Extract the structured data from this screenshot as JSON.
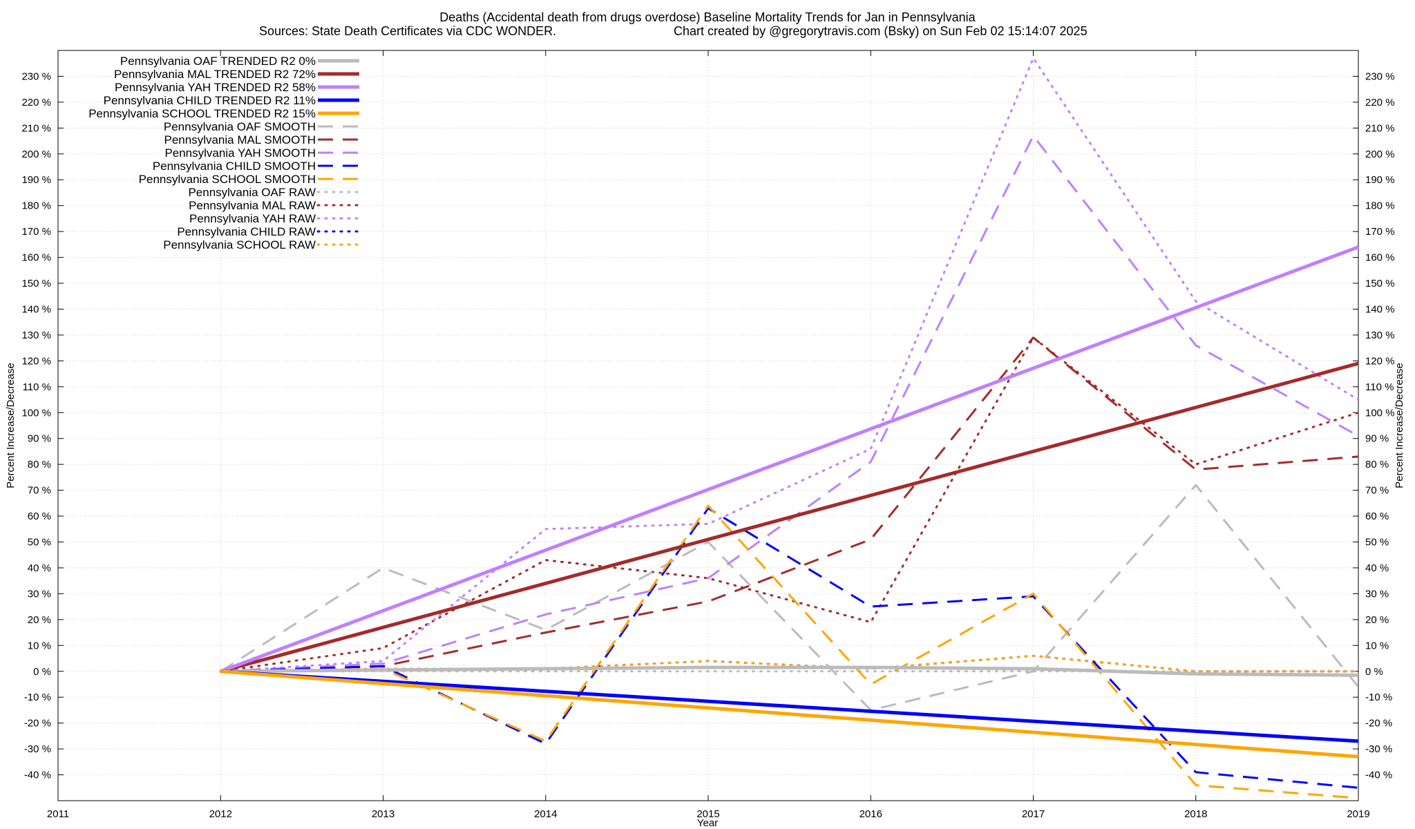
{
  "chart_data": {
    "type": "line",
    "title": "Deaths (Accidental death from drugs overdose)  Baseline Mortality Trends for Jan in Pennsylvania",
    "subtitle_left": "Sources: State Death Certificates via CDC WONDER.",
    "subtitle_right": "Chart created by @gregorytravis.com (Bsky) on Sun Feb 02 15:14:07 2025",
    "xlabel": "Year",
    "ylabel_left": "Percent Increase/Decrease",
    "ylabel_right": "Percent Increase/Decrease",
    "xlim": [
      2011,
      2019
    ],
    "ylim": [
      -50,
      240
    ],
    "x_ticks": [
      "2011",
      "2012",
      "2013",
      "2014",
      "2015",
      "2016",
      "2017",
      "2018",
      "2019"
    ],
    "y_ticks": [
      "230 %",
      "220 %",
      "210 %",
      "200 %",
      "190 %",
      "180 %",
      "170 %",
      "160 %",
      "150 %",
      "140 %",
      "130 %",
      "120 %",
      "110 %",
      "100 %",
      "90 %",
      "80 %",
      "70 %",
      "60 %",
      "50 %",
      "40 %",
      "30 %",
      "20 %",
      "10 %",
      "0 %",
      "-10 %",
      "-20 %",
      "-30 %",
      "-40 %"
    ],
    "grid": true,
    "legend_position": "top-left",
    "colors": {
      "oaf": "#bbbbbb",
      "mal": "#a52a2a",
      "yah": "#bf80ff",
      "child": "#0000ff",
      "school": "#ffa500"
    },
    "series": [
      {
        "name": "Pennsylvania OAF TRENDED R2   0%",
        "group": "oaf",
        "style": "solid",
        "x": [
          2012,
          2013,
          2014,
          2015,
          2016,
          2017,
          2018,
          2019
        ],
        "values": [
          0,
          0.5,
          1,
          1.5,
          1.5,
          1,
          -1,
          -1.5
        ]
      },
      {
        "name": "Pennsylvania MAL TRENDED R2  72%",
        "group": "mal",
        "style": "solid",
        "x": [
          2012,
          2019
        ],
        "values": [
          0,
          119
        ]
      },
      {
        "name": "Pennsylvania YAH TRENDED R2  58%",
        "group": "yah",
        "style": "solid",
        "x": [
          2012,
          2019
        ],
        "values": [
          0,
          164
        ]
      },
      {
        "name": "Pennsylvania CHILD TRENDED R2  11%",
        "group": "child",
        "style": "solid",
        "x": [
          2012,
          2019
        ],
        "values": [
          0,
          -27
        ]
      },
      {
        "name": "Pennsylvania SCHOOL TRENDED R2  15%",
        "group": "school",
        "style": "solid",
        "x": [
          2012,
          2019
        ],
        "values": [
          0,
          -33
        ]
      },
      {
        "name": "Pennsylvania OAF SMOOTH",
        "group": "oaf",
        "style": "dashed",
        "x": [
          2012,
          2013,
          2014,
          2015,
          2016,
          2017,
          2018,
          2019
        ],
        "values": [
          0,
          40,
          16,
          50,
          -15,
          0,
          72,
          -6
        ]
      },
      {
        "name": "Pennsylvania MAL SMOOTH",
        "group": "mal",
        "style": "dashed",
        "x": [
          2012,
          2013,
          2014,
          2015,
          2016,
          2017,
          2018,
          2019
        ],
        "values": [
          0,
          2,
          15,
          27,
          51,
          129,
          78,
          83
        ]
      },
      {
        "name": "Pennsylvania YAH SMOOTH",
        "group": "yah",
        "style": "dashed",
        "x": [
          2012,
          2013,
          2014,
          2015,
          2016,
          2017,
          2018,
          2019
        ],
        "values": [
          0,
          3,
          22,
          36,
          81,
          207,
          126,
          91
        ]
      },
      {
        "name": "Pennsylvania CHILD SMOOTH",
        "group": "child",
        "style": "dashed",
        "x": [
          2012,
          2013,
          2014,
          2015,
          2016,
          2017,
          2018,
          2019
        ],
        "values": [
          0,
          2,
          -28,
          63,
          25,
          29,
          -39,
          -45
        ]
      },
      {
        "name": "Pennsylvania SCHOOL SMOOTH",
        "group": "school",
        "style": "dashed",
        "x": [
          2012,
          2013,
          2014,
          2015,
          2016,
          2017,
          2018,
          2019
        ],
        "values": [
          0,
          1,
          -27,
          64,
          -5,
          30,
          -44,
          -49
        ]
      },
      {
        "name": "Pennsylvania OAF RAW",
        "group": "oaf",
        "style": "dotted",
        "x": [
          2012,
          2013,
          2014,
          2015,
          2016,
          2017,
          2018,
          2019
        ],
        "values": [
          0,
          0,
          0,
          0,
          0,
          0,
          0,
          0
        ]
      },
      {
        "name": "Pennsylvania MAL RAW",
        "group": "mal",
        "style": "dotted",
        "x": [
          2012,
          2013,
          2014,
          2015,
          2016,
          2017,
          2018,
          2019
        ],
        "values": [
          0,
          9,
          43,
          36,
          19,
          129,
          80,
          100
        ]
      },
      {
        "name": "Pennsylvania YAH RAW",
        "group": "yah",
        "style": "dotted",
        "x": [
          2012,
          2013,
          2014,
          2015,
          2016,
          2017,
          2018,
          2019
        ],
        "values": [
          0,
          4,
          55,
          57,
          86,
          237,
          143,
          105
        ]
      },
      {
        "name": "Pennsylvania CHILD RAW",
        "group": "child",
        "style": "dotted",
        "x": [
          2012,
          2013,
          2014,
          2015,
          2016,
          2017,
          2018,
          2019
        ],
        "values": [
          0,
          1,
          1,
          4,
          1,
          6,
          0,
          0
        ]
      },
      {
        "name": "Pennsylvania SCHOOL RAW",
        "group": "school",
        "style": "dotted",
        "x": [
          2012,
          2013,
          2014,
          2015,
          2016,
          2017,
          2018,
          2019
        ],
        "values": [
          0,
          1,
          1,
          4,
          1,
          6,
          0,
          0
        ]
      }
    ]
  }
}
